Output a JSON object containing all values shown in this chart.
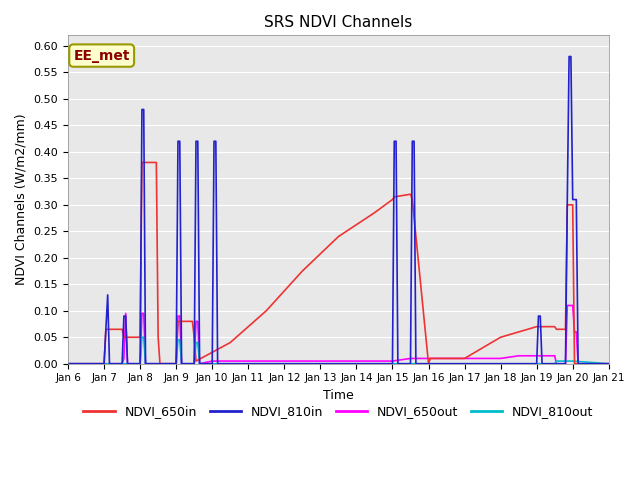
{
  "title": "SRS NDVI Channels",
  "ylabel": "NDVI Channels (W/m2/mm)",
  "xlabel": "Time",
  "annotation": "EE_met",
  "ylim": [
    0.0,
    0.62
  ],
  "yticks": [
    0.0,
    0.05,
    0.1,
    0.15,
    0.2,
    0.25,
    0.3,
    0.35,
    0.4,
    0.45,
    0.5,
    0.55,
    0.6
  ],
  "x_tick_labels": [
    "Jan 6",
    "Jan 7",
    "Jan 8",
    "Jan 9",
    "Jan 10",
    "Jan 11",
    "Jan 12",
    "Jan 13",
    "Jan 14",
    "Jan 15",
    "Jan 16",
    "Jan 17",
    "Jan 18",
    "Jan 19",
    "Jan 20",
    "Jan 21"
  ],
  "colors": {
    "NDVI_650in": "#ee3333",
    "NDVI_810in": "#2222cc",
    "NDVI_650out": "#ff00ff",
    "NDVI_810out": "#00bbcc"
  },
  "bg_color": "#e8e8e8",
  "series": {
    "NDVI_650in": {
      "x": [
        6.0,
        7.0,
        7.05,
        7.5,
        7.55,
        8.0,
        8.05,
        8.45,
        8.5,
        8.55,
        9.0,
        9.05,
        9.45,
        9.5,
        9.55,
        10.5,
        11.5,
        12.5,
        13.5,
        14.5,
        15.0,
        15.05,
        15.5,
        15.55,
        16.0,
        16.05,
        17.0,
        18.0,
        19.0,
        19.05,
        19.5,
        19.55,
        19.8,
        19.85,
        20.0,
        20.05,
        21.0
      ],
      "y": [
        0.0,
        0.0,
        0.065,
        0.065,
        0.05,
        0.05,
        0.38,
        0.38,
        0.05,
        0.0,
        0.0,
        0.08,
        0.08,
        0.05,
        0.005,
        0.04,
        0.1,
        0.175,
        0.24,
        0.285,
        0.31,
        0.315,
        0.32,
        0.31,
        0.0,
        0.01,
        0.01,
        0.05,
        0.07,
        0.07,
        0.07,
        0.065,
        0.065,
        0.3,
        0.3,
        0.0,
        0.0
      ]
    },
    "NDVI_810in": {
      "x": [
        6.0,
        7.0,
        7.05,
        7.1,
        7.15,
        7.5,
        7.55,
        7.6,
        7.65,
        8.0,
        8.05,
        8.1,
        8.15,
        9.0,
        9.05,
        9.1,
        9.15,
        9.5,
        9.55,
        9.6,
        9.65,
        10.0,
        10.05,
        10.1,
        10.15,
        15.0,
        15.05,
        15.1,
        15.15,
        15.5,
        15.55,
        15.6,
        15.65,
        19.0,
        19.05,
        19.1,
        19.15,
        19.8,
        19.85,
        19.9,
        19.95,
        20.0,
        20.05,
        20.1,
        20.15,
        21.0
      ],
      "y": [
        0.0,
        0.0,
        0.065,
        0.13,
        0.0,
        0.0,
        0.09,
        0.09,
        0.0,
        0.0,
        0.48,
        0.48,
        0.0,
        0.0,
        0.42,
        0.42,
        0.0,
        0.0,
        0.42,
        0.42,
        0.0,
        0.0,
        0.42,
        0.42,
        0.0,
        0.0,
        0.42,
        0.42,
        0.0,
        0.0,
        0.42,
        0.42,
        0.0,
        0.0,
        0.09,
        0.09,
        0.0,
        0.0,
        0.31,
        0.58,
        0.58,
        0.31,
        0.31,
        0.31,
        0.0,
        0.0
      ]
    },
    "NDVI_650out": {
      "x": [
        6.0,
        7.5,
        7.55,
        7.6,
        7.65,
        8.0,
        8.05,
        8.1,
        8.15,
        9.0,
        9.05,
        9.1,
        9.15,
        9.5,
        9.55,
        9.6,
        9.65,
        10.0,
        11.0,
        12.0,
        13.0,
        14.0,
        15.0,
        15.5,
        15.55,
        16.0,
        17.0,
        18.0,
        18.5,
        19.0,
        19.1,
        19.5,
        19.55,
        19.8,
        19.85,
        20.0,
        20.05,
        20.1,
        20.15,
        21.0
      ],
      "y": [
        0.0,
        0.0,
        0.01,
        0.095,
        0.0,
        0.0,
        0.095,
        0.095,
        0.0,
        0.0,
        0.09,
        0.09,
        0.0,
        0.0,
        0.08,
        0.08,
        0.0,
        0.005,
        0.005,
        0.005,
        0.005,
        0.005,
        0.005,
        0.01,
        0.01,
        0.01,
        0.01,
        0.01,
        0.015,
        0.015,
        0.015,
        0.015,
        0.0,
        0.0,
        0.11,
        0.11,
        0.06,
        0.06,
        0.0,
        0.0
      ]
    },
    "NDVI_810out": {
      "x": [
        6.0,
        7.5,
        7.55,
        7.6,
        7.65,
        8.0,
        8.05,
        8.1,
        8.15,
        9.0,
        9.05,
        9.1,
        9.15,
        9.5,
        9.55,
        9.6,
        9.65,
        10.0,
        19.0,
        19.5,
        19.55,
        20.0,
        21.0
      ],
      "y": [
        0.0,
        0.0,
        0.0,
        0.0,
        0.0,
        0.0,
        0.05,
        0.05,
        0.0,
        0.0,
        0.045,
        0.045,
        0.0,
        0.0,
        0.04,
        0.04,
        0.0,
        0.0,
        0.0,
        0.0,
        0.005,
        0.005,
        0.0
      ]
    }
  }
}
